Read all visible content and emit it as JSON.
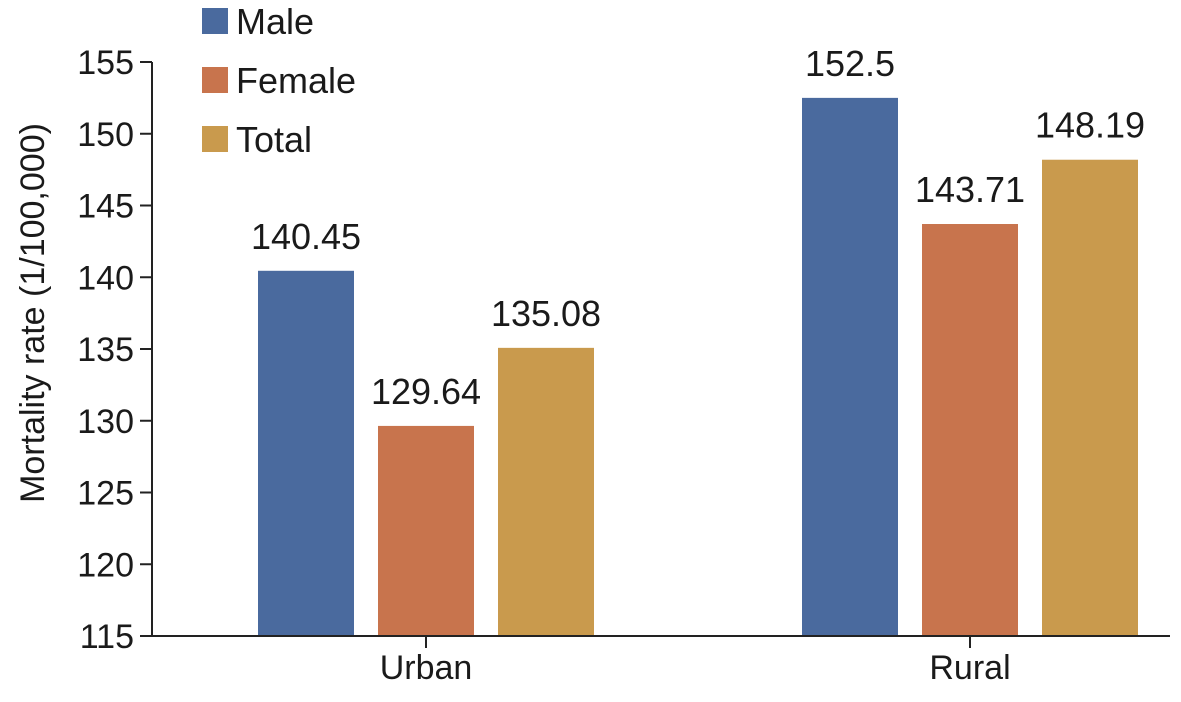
{
  "chart_data": {
    "type": "bar",
    "title": "",
    "xlabel": "",
    "ylabel": "Mortality rate (1/100,000)",
    "categories": [
      "Urban",
      "Rural"
    ],
    "series": [
      {
        "name": "Male",
        "color": "#4a6a9e",
        "values": [
          140.45,
          152.5
        ],
        "labels": [
          "140.45",
          "152.5"
        ]
      },
      {
        "name": "Female",
        "color": "#c8744d",
        "values": [
          129.64,
          143.71
        ],
        "labels": [
          "129.64",
          "143.71"
        ]
      },
      {
        "name": "Total",
        "color": "#c99a4d",
        "values": [
          135.08,
          148.19
        ],
        "labels": [
          "135.08",
          "148.19"
        ]
      }
    ],
    "ylim": [
      115,
      155
    ],
    "yticks": [
      115,
      120,
      125,
      130,
      135,
      140,
      145,
      150,
      155
    ],
    "grid": false,
    "legend_position": "top-left"
  }
}
